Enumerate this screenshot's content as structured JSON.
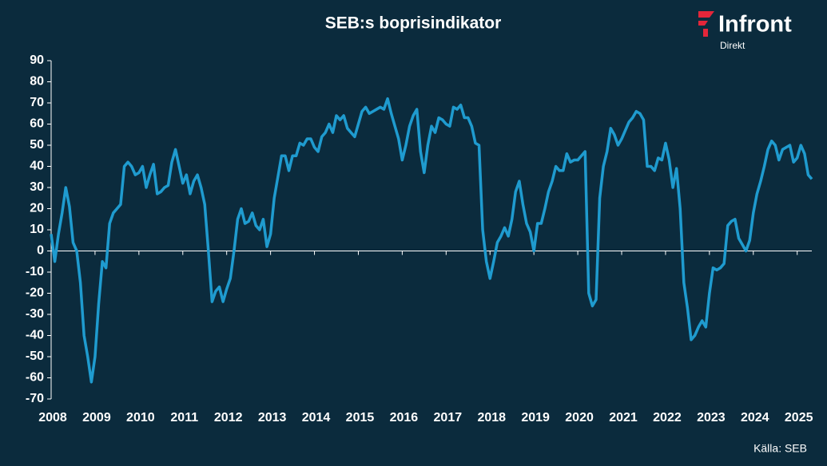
{
  "chart_data": {
    "type": "line",
    "title": "SEB:s boprisindikator",
    "source": "Källa:  SEB",
    "logo": {
      "name": "Infront",
      "sub": "Direkt"
    },
    "xlim": [
      2008,
      2025.333
    ],
    "xticks": [
      2008,
      2009,
      2010,
      2011,
      2012,
      2013,
      2014,
      2015,
      2016,
      2017,
      2018,
      2019,
      2020,
      2021,
      2022,
      2023,
      2024,
      2025
    ],
    "ylim": [
      -70,
      90
    ],
    "yticks": [
      -70,
      -60,
      -50,
      -40,
      -30,
      -20,
      -10,
      0,
      10,
      20,
      30,
      40,
      50,
      60,
      70,
      80,
      90
    ],
    "x": [
      2008,
      2008.083,
      2008.167,
      2008.25,
      2008.333,
      2008.417,
      2008.5,
      2008.583,
      2008.667,
      2008.75,
      2008.833,
      2008.917,
      2009,
      2009.083,
      2009.167,
      2009.25,
      2009.333,
      2009.417,
      2009.5,
      2009.583,
      2009.667,
      2009.75,
      2009.833,
      2009.917,
      2010,
      2010.083,
      2010.167,
      2010.25,
      2010.333,
      2010.417,
      2010.5,
      2010.583,
      2010.667,
      2010.75,
      2010.833,
      2010.917,
      2011,
      2011.083,
      2011.167,
      2011.25,
      2011.333,
      2011.417,
      2011.5,
      2011.583,
      2011.667,
      2011.75,
      2011.833,
      2011.917,
      2012,
      2012.083,
      2012.167,
      2012.25,
      2012.333,
      2012.417,
      2012.5,
      2012.583,
      2012.667,
      2012.75,
      2012.833,
      2012.917,
      2013,
      2013.083,
      2013.167,
      2013.25,
      2013.333,
      2013.417,
      2013.5,
      2013.583,
      2013.667,
      2013.75,
      2013.833,
      2013.917,
      2014,
      2014.083,
      2014.167,
      2014.25,
      2014.333,
      2014.417,
      2014.5,
      2014.583,
      2014.667,
      2014.75,
      2014.833,
      2014.917,
      2015,
      2015.083,
      2015.167,
      2015.25,
      2015.333,
      2015.417,
      2015.5,
      2015.583,
      2015.667,
      2015.75,
      2015.833,
      2015.917,
      2016,
      2016.083,
      2016.167,
      2016.25,
      2016.333,
      2016.417,
      2016.5,
      2016.583,
      2016.667,
      2016.75,
      2016.833,
      2016.917,
      2017,
      2017.083,
      2017.167,
      2017.25,
      2017.333,
      2017.417,
      2017.5,
      2017.583,
      2017.667,
      2017.75,
      2017.833,
      2017.917,
      2018,
      2018.083,
      2018.167,
      2018.25,
      2018.333,
      2018.417,
      2018.5,
      2018.583,
      2018.667,
      2018.75,
      2018.833,
      2018.917,
      2019,
      2019.083,
      2019.167,
      2019.25,
      2019.333,
      2019.417,
      2019.5,
      2019.583,
      2019.667,
      2019.75,
      2019.833,
      2019.917,
      2020,
      2020.083,
      2020.167,
      2020.25,
      2020.333,
      2020.417,
      2020.5,
      2020.583,
      2020.667,
      2020.75,
      2020.833,
      2020.917,
      2021,
      2021.083,
      2021.167,
      2021.25,
      2021.333,
      2021.417,
      2021.5,
      2021.583,
      2021.667,
      2021.75,
      2021.833,
      2021.917,
      2022,
      2022.083,
      2022.167,
      2022.25,
      2022.333,
      2022.417,
      2022.5,
      2022.583,
      2022.667,
      2022.75,
      2022.833,
      2022.917,
      2023,
      2023.083,
      2023.167,
      2023.25,
      2023.333,
      2023.417,
      2023.5,
      2023.583,
      2023.667,
      2023.75,
      2023.833,
      2023.917,
      2024,
      2024.083,
      2024.167,
      2024.25,
      2024.333,
      2024.417,
      2024.5,
      2024.583,
      2024.667,
      2024.75,
      2024.833,
      2024.917,
      2025,
      2025.083,
      2025.167,
      2025.25,
      2025.333
    ],
    "series": [
      {
        "color": "#1f9bcf",
        "values": [
          8,
          -5,
          8,
          18,
          30,
          21,
          4,
          0,
          -15,
          -40,
          -50,
          -62,
          -50,
          -25,
          -5,
          -8,
          13,
          18,
          20,
          22,
          40,
          42,
          40,
          36,
          37,
          40,
          30,
          36,
          41,
          27,
          28,
          30,
          31,
          42,
          48,
          40,
          32,
          36,
          27,
          33,
          36,
          30,
          22,
          0,
          -24,
          -19,
          -17,
          -24,
          -18,
          -13,
          0,
          15,
          20,
          13,
          14,
          18,
          12,
          10,
          15,
          2,
          8,
          25,
          35,
          45,
          45,
          38,
          45,
          45,
          51,
          50,
          53,
          53,
          49,
          47,
          54,
          56,
          60,
          56,
          64,
          62,
          64,
          58,
          56,
          54,
          60,
          66,
          68,
          65,
          66,
          67,
          68,
          67,
          72,
          65,
          59,
          53,
          43,
          50,
          59,
          64,
          67,
          47,
          37,
          50,
          59,
          56,
          63,
          62,
          60,
          59,
          68,
          67,
          69,
          63,
          63,
          59,
          51,
          50,
          10,
          -5,
          -13,
          -5,
          4,
          7,
          11,
          7,
          15,
          28,
          33,
          22,
          13,
          9,
          0,
          13,
          13,
          20,
          28,
          33,
          40,
          38,
          38,
          46,
          42,
          43,
          43,
          45,
          47,
          -20,
          -26,
          -23,
          25,
          40,
          47,
          58,
          55,
          50,
          53,
          57,
          61,
          63,
          66,
          65,
          62,
          40,
          40,
          38,
          44,
          43,
          51,
          43,
          30,
          39,
          20,
          -15,
          -27,
          -42,
          -40,
          -36,
          -33,
          -36,
          -20,
          -8,
          -9,
          -8,
          -6,
          12,
          14,
          15,
          6,
          3,
          0,
          5,
          18,
          27,
          33,
          40,
          48,
          52,
          50,
          43,
          48,
          49,
          50,
          42,
          44,
          50,
          46,
          36,
          34
        ]
      }
    ]
  }
}
